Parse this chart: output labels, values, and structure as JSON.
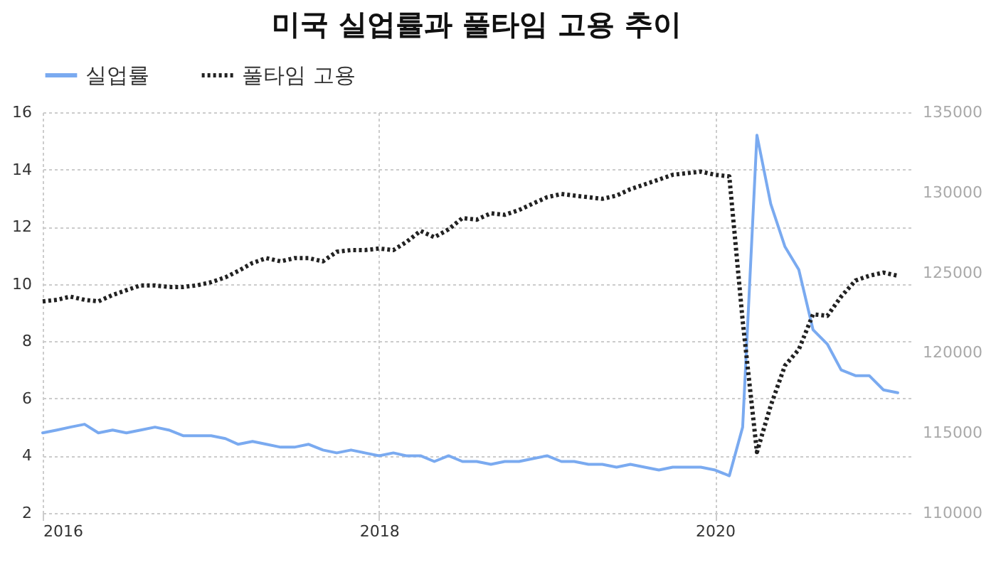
{
  "chart_data": {
    "type": "line",
    "title": "미국 실업률과 풀타임 고용 추이",
    "x": [
      "2016-01",
      "2016-02",
      "2016-03",
      "2016-04",
      "2016-05",
      "2016-06",
      "2016-07",
      "2016-08",
      "2016-09",
      "2016-10",
      "2016-11",
      "2016-12",
      "2017-01",
      "2017-02",
      "2017-03",
      "2017-04",
      "2017-05",
      "2017-06",
      "2017-07",
      "2017-08",
      "2017-09",
      "2017-10",
      "2017-11",
      "2017-12",
      "2018-01",
      "2018-02",
      "2018-03",
      "2018-04",
      "2018-05",
      "2018-06",
      "2018-07",
      "2018-08",
      "2018-09",
      "2018-10",
      "2018-11",
      "2018-12",
      "2019-01",
      "2019-02",
      "2019-03",
      "2019-04",
      "2019-05",
      "2019-06",
      "2019-07",
      "2019-08",
      "2019-09",
      "2019-10",
      "2019-11",
      "2019-12",
      "2020-01",
      "2020-02",
      "2020-03",
      "2020-04",
      "2020-05",
      "2020-06",
      "2020-07",
      "2020-08",
      "2020-09",
      "2020-10",
      "2020-11",
      "2020-12",
      "2021-01",
      "2021-02"
    ],
    "series": [
      {
        "name": "실업률",
        "color": "#7aaaf0",
        "line_style": "solid",
        "values": [
          4.8,
          4.9,
          5.0,
          5.1,
          4.8,
          4.9,
          4.8,
          4.9,
          5.0,
          4.9,
          4.7,
          4.7,
          4.7,
          4.6,
          4.4,
          4.5,
          4.4,
          4.3,
          4.3,
          4.4,
          4.2,
          4.1,
          4.2,
          4.1,
          4.0,
          4.1,
          4.0,
          4.0,
          3.8,
          4.0,
          3.8,
          3.8,
          3.7,
          3.8,
          3.8,
          3.9,
          4.0,
          3.8,
          3.8,
          3.7,
          3.7,
          3.6,
          3.7,
          3.6,
          3.5,
          3.6,
          3.6,
          3.6,
          3.5,
          3.3,
          5.0,
          15.2,
          12.8,
          11.3,
          10.5,
          8.4,
          7.9,
          7.0,
          6.8,
          6.8,
          6.3,
          6.2
        ]
      },
      {
        "name": "풀타임 고용",
        "color": "#222222",
        "line_style": "dotted",
        "axis": "y2",
        "values": [
          123200,
          123300,
          123500,
          123300,
          123200,
          123600,
          123900,
          124200,
          124200,
          124100,
          124100,
          124200,
          124400,
          124700,
          125100,
          125600,
          125900,
          125700,
          125900,
          125900,
          125700,
          126300,
          126400,
          126400,
          126500,
          126400,
          126900,
          127600,
          127200,
          127700,
          128400,
          128300,
          128700,
          128600,
          128900,
          129300,
          129700,
          129900,
          129800,
          129700,
          129600,
          129800,
          130200,
          130500,
          130800,
          131100,
          131200,
          131300,
          131100,
          131000,
          122000,
          113800,
          116700,
          119200,
          120200,
          122400,
          122300,
          123500,
          124500,
          124800,
          125000,
          124800
        ]
      }
    ],
    "xlim": [
      "2016-01",
      "2021-03"
    ],
    "xticks": [
      "2016",
      "2018",
      "2020"
    ],
    "ylim": [
      2,
      16
    ],
    "yticks": [
      2,
      4,
      6,
      8,
      10,
      12,
      14,
      16
    ],
    "y2lim": [
      110000,
      135000
    ],
    "y2ticks": [
      110000,
      115000,
      120000,
      125000,
      130000,
      135000
    ],
    "grid": true,
    "legend": "top left"
  }
}
